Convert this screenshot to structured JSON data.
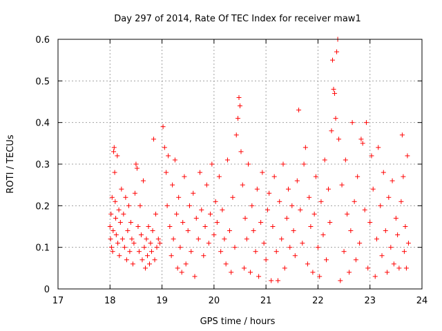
{
  "chart_data": {
    "type": "scatter",
    "title": "Day 297 of 2014, Rate Of TEC Index for receiver maw1",
    "xlabel": "GPS time / hours",
    "ylabel": "ROTI / TECUs",
    "xlim": [
      17,
      24
    ],
    "ylim": [
      0,
      0.6
    ],
    "xticks": [
      "17",
      "18",
      "19",
      "20",
      "21",
      "22",
      "23",
      "24"
    ],
    "yticks": [
      "0",
      "0.1",
      "0.2",
      "0.3",
      "0.4",
      "0.5",
      "0.6"
    ],
    "grid": true,
    "marker": "+",
    "color": "#ff0000",
    "series": [
      {
        "points": [
          [
            18.0,
            0.15
          ],
          [
            18.01,
            0.12
          ],
          [
            18.02,
            0.18
          ],
          [
            18.03,
            0.1
          ],
          [
            18.04,
            0.22
          ],
          [
            18.05,
            0.09
          ],
          [
            18.06,
            0.14
          ],
          [
            18.07,
            0.33
          ],
          [
            18.08,
            0.34
          ],
          [
            18.09,
            0.28
          ],
          [
            18.1,
            0.21
          ],
          [
            18.11,
            0.17
          ],
          [
            18.12,
            0.13
          ],
          [
            18.14,
            0.32
          ],
          [
            18.15,
            0.11
          ],
          [
            18.17,
            0.19
          ],
          [
            18.18,
            0.08
          ],
          [
            18.2,
            0.16
          ],
          [
            18.22,
            0.24
          ],
          [
            18.24,
            0.12
          ],
          [
            18.26,
            0.18
          ],
          [
            18.28,
            0.1
          ],
          [
            18.3,
            0.22
          ],
          [
            18.32,
            0.07
          ],
          [
            18.34,
            0.14
          ],
          [
            18.36,
            0.2
          ],
          [
            18.38,
            0.09
          ],
          [
            18.4,
            0.16
          ],
          [
            18.42,
            0.12
          ],
          [
            18.44,
            0.06
          ],
          [
            18.46,
            0.11
          ],
          [
            18.48,
            0.23
          ],
          [
            18.5,
            0.3
          ],
          [
            18.52,
            0.29
          ],
          [
            18.54,
            0.15
          ],
          [
            18.56,
            0.09
          ],
          [
            18.58,
            0.2
          ],
          [
            18.6,
            0.13
          ],
          [
            18.62,
            0.07
          ],
          [
            18.64,
            0.26
          ],
          [
            18.66,
            0.1
          ],
          [
            18.68,
            0.05
          ],
          [
            18.7,
            0.12
          ],
          [
            18.72,
            0.08
          ],
          [
            18.74,
            0.15
          ],
          [
            18.76,
            0.06
          ],
          [
            18.78,
            0.11
          ],
          [
            18.8,
            0.09
          ],
          [
            18.82,
            0.14
          ],
          [
            18.84,
            0.36
          ],
          [
            18.86,
            0.07
          ],
          [
            18.88,
            0.18
          ],
          [
            18.9,
            0.1
          ],
          [
            18.93,
            0.12
          ],
          [
            18.96,
            0.11
          ],
          [
            19.02,
            0.39
          ],
          [
            19.05,
            0.34
          ],
          [
            19.08,
            0.28
          ],
          [
            19.1,
            0.2
          ],
          [
            19.12,
            0.32
          ],
          [
            19.15,
            0.15
          ],
          [
            19.18,
            0.08
          ],
          [
            19.2,
            0.25
          ],
          [
            19.22,
            0.12
          ],
          [
            19.25,
            0.31
          ],
          [
            19.28,
            0.18
          ],
          [
            19.3,
            0.05
          ],
          [
            19.32,
            0.22
          ],
          [
            19.35,
            0.1
          ],
          [
            19.38,
            0.04
          ],
          [
            19.4,
            0.16
          ],
          [
            19.43,
            0.27
          ],
          [
            19.46,
            0.06
          ],
          [
            19.5,
            0.14
          ],
          [
            19.53,
            0.2
          ],
          [
            19.56,
            0.09
          ],
          [
            19.6,
            0.23
          ],
          [
            19.63,
            0.03
          ],
          [
            19.66,
            0.17
          ],
          [
            19.7,
            0.12
          ],
          [
            19.73,
            0.28
          ],
          [
            19.76,
            0.19
          ],
          [
            19.8,
            0.08
          ],
          [
            19.83,
            0.15
          ],
          [
            19.86,
            0.25
          ],
          [
            19.9,
            0.11
          ],
          [
            19.93,
            0.18
          ],
          [
            19.96,
            0.3
          ],
          [
            20.0,
            0.13
          ],
          [
            20.03,
            0.21
          ],
          [
            20.06,
            0.16
          ],
          [
            20.1,
            0.27
          ],
          [
            20.13,
            0.09
          ],
          [
            20.16,
            0.19
          ],
          [
            20.2,
            0.12
          ],
          [
            20.23,
            0.06
          ],
          [
            20.26,
            0.31
          ],
          [
            20.3,
            0.14
          ],
          [
            20.33,
            0.04
          ],
          [
            20.36,
            0.22
          ],
          [
            20.4,
            0.1
          ],
          [
            20.43,
            0.37
          ],
          [
            20.46,
            0.41
          ],
          [
            20.48,
            0.46
          ],
          [
            20.5,
            0.44
          ],
          [
            20.52,
            0.33
          ],
          [
            20.55,
            0.25
          ],
          [
            20.58,
            0.05
          ],
          [
            20.6,
            0.17
          ],
          [
            20.63,
            0.12
          ],
          [
            20.66,
            0.3
          ],
          [
            20.7,
            0.04
          ],
          [
            20.73,
            0.2
          ],
          [
            20.76,
            0.14
          ],
          [
            20.8,
            0.09
          ],
          [
            20.83,
            0.24
          ],
          [
            20.86,
            0.03
          ],
          [
            20.9,
            0.16
          ],
          [
            20.93,
            0.28
          ],
          [
            20.96,
            0.11
          ],
          [
            21.0,
            0.07
          ],
          [
            21.03,
            0.19
          ],
          [
            21.06,
            0.23
          ],
          [
            21.1,
            0.02
          ],
          [
            21.13,
            0.15
          ],
          [
            21.16,
            0.27
          ],
          [
            21.2,
            0.09
          ],
          [
            21.23,
            0.02
          ],
          [
            21.26,
            0.21
          ],
          [
            21.3,
            0.12
          ],
          [
            21.33,
            0.3
          ],
          [
            21.36,
            0.05
          ],
          [
            21.4,
            0.17
          ],
          [
            21.43,
            0.24
          ],
          [
            21.46,
            0.1
          ],
          [
            21.5,
            0.2
          ],
          [
            21.53,
            0.14
          ],
          [
            21.56,
            0.08
          ],
          [
            21.6,
            0.26
          ],
          [
            21.63,
            0.43
          ],
          [
            21.66,
            0.19
          ],
          [
            21.7,
            0.11
          ],
          [
            21.73,
            0.3
          ],
          [
            21.76,
            0.34
          ],
          [
            21.8,
            0.06
          ],
          [
            21.83,
            0.22
          ],
          [
            21.86,
            0.15
          ],
          [
            21.9,
            0.04
          ],
          [
            21.93,
            0.18
          ],
          [
            21.96,
            0.27
          ],
          [
            22.0,
            0.1
          ],
          [
            22.03,
            0.03
          ],
          [
            22.06,
            0.21
          ],
          [
            22.1,
            0.13
          ],
          [
            22.13,
            0.31
          ],
          [
            22.16,
            0.07
          ],
          [
            22.2,
            0.24
          ],
          [
            22.23,
            0.16
          ],
          [
            22.26,
            0.38
          ],
          [
            22.28,
            0.55
          ],
          [
            22.3,
            0.48
          ],
          [
            22.32,
            0.47
          ],
          [
            22.34,
            0.41
          ],
          [
            22.36,
            0.57
          ],
          [
            22.38,
            0.6
          ],
          [
            22.4,
            0.36
          ],
          [
            22.43,
            0.02
          ],
          [
            22.46,
            0.25
          ],
          [
            22.5,
            0.09
          ],
          [
            22.53,
            0.31
          ],
          [
            22.56,
            0.18
          ],
          [
            22.6,
            0.04
          ],
          [
            22.63,
            0.14
          ],
          [
            22.66,
            0.4
          ],
          [
            22.7,
            0.21
          ],
          [
            22.73,
            0.07
          ],
          [
            22.76,
            0.27
          ],
          [
            22.8,
            0.11
          ],
          [
            22.83,
            0.36
          ],
          [
            22.86,
            0.35
          ],
          [
            22.9,
            0.19
          ],
          [
            22.93,
            0.4
          ],
          [
            22.96,
            0.05
          ],
          [
            23.0,
            0.16
          ],
          [
            23.03,
            0.32
          ],
          [
            23.06,
            0.24
          ],
          [
            23.1,
            0.03
          ],
          [
            23.13,
            0.12
          ],
          [
            23.16,
            0.34
          ],
          [
            23.2,
            0.2
          ],
          [
            23.23,
            0.08
          ],
          [
            23.26,
            0.28
          ],
          [
            23.3,
            0.14
          ],
          [
            23.33,
            0.04
          ],
          [
            23.36,
            0.22
          ],
          [
            23.4,
            0.1
          ],
          [
            23.43,
            0.26
          ],
          [
            23.46,
            0.06
          ],
          [
            23.5,
            0.17
          ],
          [
            23.53,
            0.13
          ],
          [
            23.56,
            0.05
          ],
          [
            23.6,
            0.21
          ],
          [
            23.62,
            0.37
          ],
          [
            23.64,
            0.27
          ],
          [
            23.66,
            0.09
          ],
          [
            23.68,
            0.15
          ],
          [
            23.7,
            0.05
          ],
          [
            23.72,
            0.32
          ],
          [
            23.74,
            0.11
          ]
        ]
      }
    ]
  }
}
